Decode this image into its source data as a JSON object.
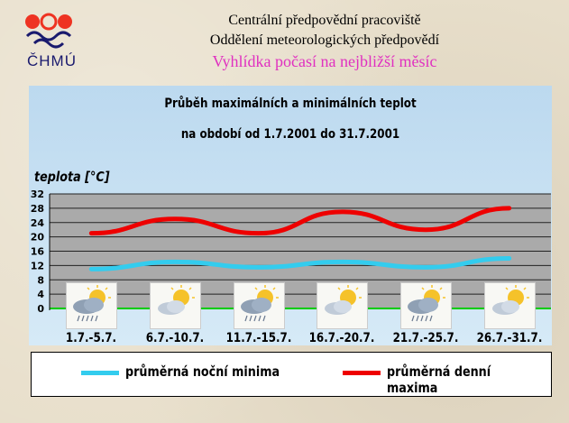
{
  "header": {
    "logo_text": "ČHMÚ",
    "line1": "Centrální předpovědní pracoviště",
    "line2": "Oddělení meteorologických předpovědí",
    "line3": "Vyhlídka  počasí na nejbližší měsíc"
  },
  "chart_data": {
    "type": "line",
    "title": "Průběh  maximálních a minimálních teplot",
    "subtitle": "na období od 1.7.2001 do 31.7.2001",
    "ylabel": "teplota [°C]",
    "ylim": [
      0,
      32
    ],
    "yticks": [
      0,
      4,
      8,
      12,
      16,
      20,
      24,
      28,
      32
    ],
    "grid": true,
    "legend_placement": "bottom",
    "categories": [
      "1.7.-5.7.",
      "6.7.-10.7.",
      "11.7.-15.7.",
      "16.7.-20.7.",
      "21.7.-25.7.",
      "26.7.-31.7."
    ],
    "series": [
      {
        "name": "průměrná noční minima",
        "color": "#33ccee",
        "values": [
          11,
          13,
          11.5,
          13,
          11.5,
          14
        ]
      },
      {
        "name": "průměrná denní maxima",
        "color": "#ee0000",
        "values": [
          21,
          25,
          21,
          27,
          22,
          28
        ]
      }
    ],
    "weather_icons": [
      "cloud-sun-rain-icon",
      "sun-cloud-icon",
      "cloud-sun-rain-icon",
      "sun-cloud-icon",
      "cloud-sun-rain-icon",
      "sun-cloud-icon"
    ]
  },
  "colors": {
    "grid_bg": "#aaaaaa",
    "panel_bg": "#c6e0f3",
    "zero_line": "#00cc00"
  }
}
